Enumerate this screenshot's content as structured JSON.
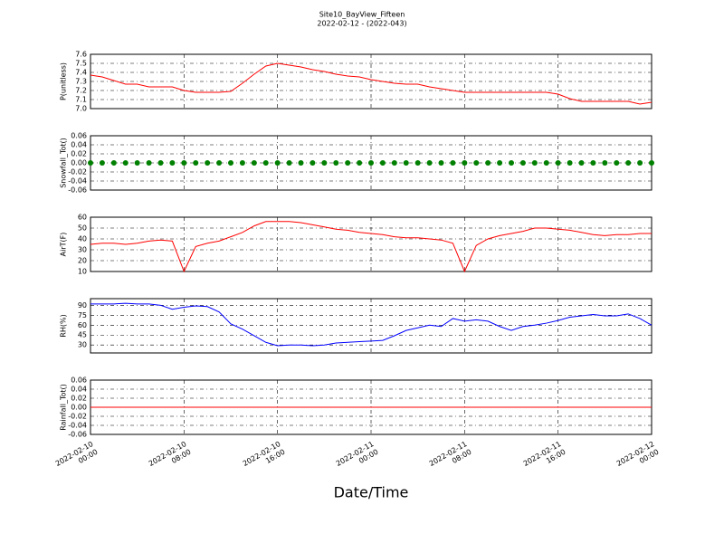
{
  "chart_data": [
    {
      "type": "line",
      "title": "Site10_BayView_Fifteen",
      "subtitle": "2022-02-12 - (2022-043)",
      "ylabel": "P(unitless)",
      "color": "#ff0000",
      "x": [
        "2022-02-10 00:00",
        "2022-02-10 01:00",
        "2022-02-10 02:00",
        "2022-02-10 03:00",
        "2022-02-10 04:00",
        "2022-02-10 05:00",
        "2022-02-10 06:00",
        "2022-02-10 07:00",
        "2022-02-10 08:00",
        "2022-02-10 09:00",
        "2022-02-10 10:00",
        "2022-02-10 11:00",
        "2022-02-10 12:00",
        "2022-02-10 13:00",
        "2022-02-10 14:00",
        "2022-02-10 15:00",
        "2022-02-10 16:00",
        "2022-02-10 17:00",
        "2022-02-10 18:00",
        "2022-02-10 19:00",
        "2022-02-10 20:00",
        "2022-02-10 21:00",
        "2022-02-10 22:00",
        "2022-02-10 23:00",
        "2022-02-11 00:00",
        "2022-02-11 01:00",
        "2022-02-11 02:00",
        "2022-02-11 03:00",
        "2022-02-11 04:00",
        "2022-02-11 05:00",
        "2022-02-11 06:00",
        "2022-02-11 07:00",
        "2022-02-11 08:00",
        "2022-02-11 09:00",
        "2022-02-11 10:00",
        "2022-02-11 11:00",
        "2022-02-11 12:00",
        "2022-02-11 13:00",
        "2022-02-11 14:00",
        "2022-02-11 15:00",
        "2022-02-11 16:00",
        "2022-02-11 17:00",
        "2022-02-11 18:00",
        "2022-02-11 19:00",
        "2022-02-11 20:00",
        "2022-02-11 21:00",
        "2022-02-11 22:00",
        "2022-02-11 23:00",
        "2022-02-12 00:00"
      ],
      "values": [
        7.37,
        7.35,
        7.31,
        7.27,
        7.27,
        7.24,
        7.24,
        7.24,
        7.2,
        7.18,
        7.18,
        7.18,
        7.19,
        7.28,
        7.38,
        7.47,
        7.5,
        7.48,
        7.46,
        7.43,
        7.41,
        7.38,
        7.36,
        7.35,
        7.32,
        7.3,
        7.28,
        7.27,
        7.27,
        7.24,
        7.22,
        7.2,
        7.18,
        7.18,
        7.18,
        7.18,
        7.18,
        7.18,
        7.18,
        7.18,
        7.16,
        7.11,
        7.08,
        7.08,
        7.08,
        7.08,
        7.08,
        7.05,
        7.07
      ],
      "xlim": [
        "2022-02-10 00:00",
        "2022-02-12 00:00"
      ],
      "ylim": [
        7.0,
        7.6
      ],
      "yticks": [
        {
          "value": 7,
          "label": "7.0"
        },
        7.1,
        7.2,
        7.3,
        7.4,
        7.5,
        7.6
      ],
      "grid": true
    },
    {
      "type": "scatter",
      "ylabel": "Snowfall_Tot()",
      "color": "#008000",
      "x": [
        "2022-02-10 00:00",
        "2022-02-10 01:00",
        "2022-02-10 02:00",
        "2022-02-10 03:00",
        "2022-02-10 04:00",
        "2022-02-10 05:00",
        "2022-02-10 06:00",
        "2022-02-10 07:00",
        "2022-02-10 08:00",
        "2022-02-10 09:00",
        "2022-02-10 10:00",
        "2022-02-10 11:00",
        "2022-02-10 12:00",
        "2022-02-10 13:00",
        "2022-02-10 14:00",
        "2022-02-10 15:00",
        "2022-02-10 16:00",
        "2022-02-10 17:00",
        "2022-02-10 18:00",
        "2022-02-10 19:00",
        "2022-02-10 20:00",
        "2022-02-10 21:00",
        "2022-02-10 22:00",
        "2022-02-10 23:00",
        "2022-02-11 00:00",
        "2022-02-11 01:00",
        "2022-02-11 02:00",
        "2022-02-11 03:00",
        "2022-02-11 04:00",
        "2022-02-11 05:00",
        "2022-02-11 06:00",
        "2022-02-11 07:00",
        "2022-02-11 08:00",
        "2022-02-11 09:00",
        "2022-02-11 10:00",
        "2022-02-11 11:00",
        "2022-02-11 12:00",
        "2022-02-11 13:00",
        "2022-02-11 14:00",
        "2022-02-11 15:00",
        "2022-02-11 16:00",
        "2022-02-11 17:00",
        "2022-02-11 18:00",
        "2022-02-11 19:00",
        "2022-02-11 20:00",
        "2022-02-11 21:00",
        "2022-02-11 22:00",
        "2022-02-11 23:00",
        "2022-02-12 00:00"
      ],
      "values": [
        0,
        0,
        0,
        0,
        0,
        0,
        0,
        0,
        0,
        0,
        0,
        0,
        0,
        0,
        0,
        0,
        0,
        0,
        0,
        0,
        0,
        0,
        0,
        0,
        0,
        0,
        0,
        0,
        0,
        0,
        0,
        0,
        0,
        0,
        0,
        0,
        0,
        0,
        0,
        0,
        0,
        0,
        0,
        0,
        0,
        0,
        0,
        0,
        0
      ],
      "xlim": [
        "2022-02-10 00:00",
        "2022-02-12 00:00"
      ],
      "ylim": [
        -0.06,
        0.06
      ],
      "yticks": [
        -0.06,
        -0.04,
        -0.02,
        {
          "value": 0,
          "label": "0.00"
        },
        0.02,
        0.04,
        0.06
      ],
      "grid": true
    },
    {
      "type": "line",
      "ylabel": "AirT(F)",
      "color": "#ff0000",
      "x": [
        "2022-02-10 00:00",
        "2022-02-10 01:00",
        "2022-02-10 02:00",
        "2022-02-10 03:00",
        "2022-02-10 04:00",
        "2022-02-10 05:00",
        "2022-02-10 06:00",
        "2022-02-10 07:00",
        "2022-02-10 08:00",
        "2022-02-10 09:00",
        "2022-02-10 10:00",
        "2022-02-10 11:00",
        "2022-02-10 12:00",
        "2022-02-10 13:00",
        "2022-02-10 14:00",
        "2022-02-10 15:00",
        "2022-02-10 16:00",
        "2022-02-10 17:00",
        "2022-02-10 18:00",
        "2022-02-10 19:00",
        "2022-02-10 20:00",
        "2022-02-10 21:00",
        "2022-02-10 22:00",
        "2022-02-10 23:00",
        "2022-02-11 00:00",
        "2022-02-11 01:00",
        "2022-02-11 02:00",
        "2022-02-11 03:00",
        "2022-02-11 04:00",
        "2022-02-11 05:00",
        "2022-02-11 06:00",
        "2022-02-11 07:00",
        "2022-02-11 08:00",
        "2022-02-11 09:00",
        "2022-02-11 10:00",
        "2022-02-11 11:00",
        "2022-02-11 12:00",
        "2022-02-11 13:00",
        "2022-02-11 14:00",
        "2022-02-11 15:00",
        "2022-02-11 16:00",
        "2022-02-11 17:00",
        "2022-02-11 18:00",
        "2022-02-11 19:00",
        "2022-02-11 20:00",
        "2022-02-11 21:00",
        "2022-02-11 22:00",
        "2022-02-11 23:00",
        "2022-02-12 00:00"
      ],
      "values": [
        35,
        36,
        36,
        35,
        36,
        38,
        39,
        38,
        10,
        33,
        36,
        38,
        42,
        46,
        52,
        56,
        56,
        56,
        55,
        53,
        51,
        49,
        48,
        46,
        45,
        44,
        42,
        41,
        41,
        40,
        39,
        36,
        10,
        34,
        40,
        43,
        45,
        47,
        50,
        50,
        49,
        48,
        46,
        44,
        43,
        44,
        44,
        45,
        45
      ],
      "xlim": [
        "2022-02-10 00:00",
        "2022-02-12 00:00"
      ],
      "ylim": [
        10,
        60
      ],
      "yticks": [
        10,
        20,
        30,
        40,
        50,
        60
      ],
      "grid": true
    },
    {
      "type": "line",
      "ylabel": "RH(%)",
      "color": "#0000ff",
      "x": [
        "2022-02-10 00:00",
        "2022-02-10 01:00",
        "2022-02-10 02:00",
        "2022-02-10 03:00",
        "2022-02-10 04:00",
        "2022-02-10 05:00",
        "2022-02-10 06:00",
        "2022-02-10 07:00",
        "2022-02-10 08:00",
        "2022-02-10 09:00",
        "2022-02-10 10:00",
        "2022-02-10 11:00",
        "2022-02-10 12:00",
        "2022-02-10 13:00",
        "2022-02-10 14:00",
        "2022-02-10 15:00",
        "2022-02-10 16:00",
        "2022-02-10 17:00",
        "2022-02-10 18:00",
        "2022-02-10 19:00",
        "2022-02-10 20:00",
        "2022-02-10 21:00",
        "2022-02-10 22:00",
        "2022-02-10 23:00",
        "2022-02-11 00:00",
        "2022-02-11 01:00",
        "2022-02-11 02:00",
        "2022-02-11 03:00",
        "2022-02-11 04:00",
        "2022-02-11 05:00",
        "2022-02-11 06:00",
        "2022-02-11 07:00",
        "2022-02-11 08:00",
        "2022-02-11 09:00",
        "2022-02-11 10:00",
        "2022-02-11 11:00",
        "2022-02-11 12:00",
        "2022-02-11 13:00",
        "2022-02-11 14:00",
        "2022-02-11 15:00",
        "2022-02-11 16:00",
        "2022-02-11 17:00",
        "2022-02-11 18:00",
        "2022-02-11 19:00",
        "2022-02-11 20:00",
        "2022-02-11 21:00",
        "2022-02-11 22:00",
        "2022-02-11 23:00",
        "2022-02-12 00:00"
      ],
      "values": [
        92,
        92,
        92,
        93,
        92,
        92,
        90,
        84,
        87,
        89,
        88,
        80,
        62,
        54,
        44,
        34,
        29,
        30,
        30,
        29,
        30,
        33,
        34,
        35,
        36,
        37,
        44,
        52,
        56,
        60,
        58,
        70,
        66,
        68,
        66,
        58,
        52,
        58,
        60,
        63,
        67,
        72,
        74,
        76,
        74,
        74,
        77,
        70,
        60
      ],
      "xlim": [
        "2022-02-10 00:00",
        "2022-02-12 00:00"
      ],
      "ylim": [
        18,
        100
      ],
      "yticks": [
        30,
        45,
        60,
        75,
        90
      ],
      "grid": true
    },
    {
      "type": "line",
      "ylabel": "Rainfall_Tot()",
      "xlabel": "Date/Time",
      "color": "#ff0000",
      "x": [
        "2022-02-10 00:00",
        "2022-02-10 01:00",
        "2022-02-10 02:00",
        "2022-02-10 03:00",
        "2022-02-10 04:00",
        "2022-02-10 05:00",
        "2022-02-10 06:00",
        "2022-02-10 07:00",
        "2022-02-10 08:00",
        "2022-02-10 09:00",
        "2022-02-10 10:00",
        "2022-02-10 11:00",
        "2022-02-10 12:00",
        "2022-02-10 13:00",
        "2022-02-10 14:00",
        "2022-02-10 15:00",
        "2022-02-10 16:00",
        "2022-02-10 17:00",
        "2022-02-10 18:00",
        "2022-02-10 19:00",
        "2022-02-10 20:00",
        "2022-02-10 21:00",
        "2022-02-10 22:00",
        "2022-02-10 23:00",
        "2022-02-11 00:00",
        "2022-02-11 01:00",
        "2022-02-11 02:00",
        "2022-02-11 03:00",
        "2022-02-11 04:00",
        "2022-02-11 05:00",
        "2022-02-11 06:00",
        "2022-02-11 07:00",
        "2022-02-11 08:00",
        "2022-02-11 09:00",
        "2022-02-11 10:00",
        "2022-02-11 11:00",
        "2022-02-11 12:00",
        "2022-02-11 13:00",
        "2022-02-11 14:00",
        "2022-02-11 15:00",
        "2022-02-11 16:00",
        "2022-02-11 17:00",
        "2022-02-11 18:00",
        "2022-02-11 19:00",
        "2022-02-11 20:00",
        "2022-02-11 21:00",
        "2022-02-11 22:00",
        "2022-02-11 23:00",
        "2022-02-12 00:00"
      ],
      "values": [
        0,
        0,
        0,
        0,
        0,
        0,
        0,
        0,
        0,
        0,
        0,
        0,
        0,
        0,
        0,
        0,
        0,
        0,
        0,
        0,
        0,
        0,
        0,
        0,
        0,
        0,
        0,
        0,
        0,
        0,
        0,
        0,
        0,
        0,
        0,
        0,
        0,
        0,
        0,
        0,
        0,
        0,
        0,
        0,
        0,
        0,
        0,
        0,
        0
      ],
      "xlim": [
        "2022-02-10 00:00",
        "2022-02-12 00:00"
      ],
      "ylim": [
        -0.06,
        0.06
      ],
      "yticks": [
        -0.06,
        -0.04,
        -0.02,
        {
          "value": 0,
          "label": "0.00"
        },
        0.02,
        0.04,
        0.06
      ],
      "xticks": [
        "2022-02-10 00:00",
        "2022-02-10 08:00",
        "2022-02-10 16:00",
        "2022-02-11 00:00",
        "2022-02-11 08:00",
        "2022-02-11 16:00",
        "2022-02-12 00:00"
      ],
      "grid": true
    }
  ]
}
